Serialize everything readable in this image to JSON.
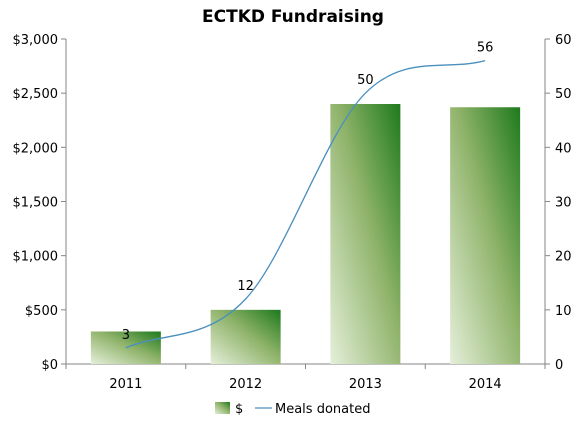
{
  "chart_data": {
    "type": "bar",
    "title": "ECTKD Fundraising",
    "categories": [
      "2011",
      "2012",
      "2013",
      "2014"
    ],
    "series": [
      {
        "name": "$",
        "type": "bar",
        "axis": "left",
        "values": [
          300,
          500,
          2400,
          2370
        ]
      },
      {
        "name": "Meals donated",
        "type": "line",
        "axis": "right",
        "values": [
          3,
          12,
          50,
          56
        ],
        "data_labels": [
          "3",
          "12",
          "50",
          "56"
        ]
      }
    ],
    "y_left": {
      "ticks": [
        "$0",
        "$500",
        "$1,000",
        "$1,500",
        "$2,000",
        "$2,500",
        "$3,000"
      ],
      "range": [
        0,
        3000
      ]
    },
    "y_right": {
      "ticks": [
        "0",
        "10",
        "20",
        "30",
        "40",
        "50",
        "60"
      ],
      "range": [
        0,
        60
      ]
    },
    "grid": false,
    "legend_position": "bottom",
    "colors": {
      "bar_light": "#e4efd9",
      "bar_mid": "#8fb36a",
      "bar_dark": "#1e7a1e",
      "line": "#4a8fbd",
      "axis": "#868686"
    }
  }
}
